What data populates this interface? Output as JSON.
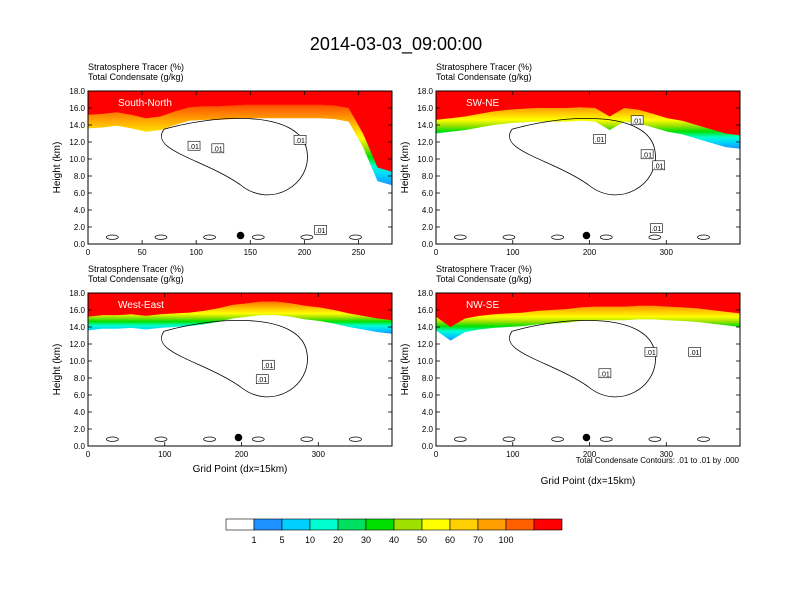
{
  "figure": {
    "title": "2014-03-03_09:00:00",
    "panel_title_line1": "Stratosphere Tracer   (%)",
    "panel_title_line2": "Total Condensate   (g/kg)",
    "ylabel": "Height (km)",
    "xlabel": "Grid Point (dx=15km)",
    "contour_note": "Total Condensate Contours: .01 to .01 by .000"
  },
  "colorbar": {
    "colors": [
      "#ffffff",
      "#1e90ff",
      "#00d0ff",
      "#00ffd0",
      "#00e060",
      "#00e000",
      "#a0e000",
      "#ffff00",
      "#ffd000",
      "#ffa000",
      "#ff6000",
      "#ff0000"
    ],
    "labels": [
      "1",
      "5",
      "10",
      "20",
      "30",
      "40",
      "50",
      "60",
      "70",
      "100"
    ]
  },
  "chart_data": [
    {
      "type": "heatmap",
      "panel_label": "South-North",
      "xlabel": "",
      "ylabel": "Height (km)",
      "x_ticks": [
        "0",
        "50",
        "100",
        "150",
        "200",
        "250"
      ],
      "x_tick_values": [
        0,
        50,
        100,
        150,
        200,
        250
      ],
      "xlim": [
        0,
        281
      ],
      "y_ticks": [
        "0.0",
        "2.0",
        "4.0",
        "6.0",
        "8.0",
        "10.0",
        "12.0",
        "14.0",
        "16.0",
        "18.0"
      ],
      "ylim": [
        0,
        18
      ],
      "tracer_base_km": [
        15.2,
        15.3,
        15.5,
        15.2,
        14.8,
        15.0,
        15.6,
        16.1,
        16.2,
        16.2,
        16.3,
        16.4,
        16.4,
        16.4,
        16.4,
        16.4,
        16.4,
        16.3,
        16.0,
        13.0,
        9.0,
        8.5
      ],
      "contour_labels": [
        {
          "x": 98,
          "y": 11.5,
          "text": ".01"
        },
        {
          "x": 120,
          "y": 11.2,
          "text": ".01"
        },
        {
          "x": 196,
          "y": 12.2,
          "text": ".01"
        },
        {
          "x": 215,
          "y": 1.6,
          "text": ".01"
        }
      ],
      "marker": {
        "x": 141,
        "y": 1.0
      }
    },
    {
      "type": "heatmap",
      "panel_label": "SW-NE",
      "xlabel": "",
      "ylabel": "Height (km)",
      "x_ticks": [
        "0",
        "100",
        "200",
        "300"
      ],
      "x_tick_values": [
        0,
        100,
        200,
        300
      ],
      "xlim": [
        0,
        396
      ],
      "y_ticks": [
        "0.0",
        "2.0",
        "4.0",
        "6.0",
        "8.0",
        "10.0",
        "12.0",
        "14.0",
        "16.0",
        "18.0"
      ],
      "ylim": [
        0,
        18
      ],
      "tracer_base_km": [
        14.6,
        14.8,
        15.0,
        15.3,
        15.6,
        15.8,
        15.9,
        16.0,
        16.0,
        16.0,
        16.1,
        16.0,
        15.0,
        16.0,
        15.8,
        15.3,
        14.8,
        14.5,
        14.0,
        13.5,
        13.0,
        12.8
      ],
      "contour_labels": [
        {
          "x": 262,
          "y": 14.5,
          "text": ".01"
        },
        {
          "x": 275,
          "y": 10.5,
          "text": ".01"
        },
        {
          "x": 290,
          "y": 9.2,
          "text": ".01"
        },
        {
          "x": 287,
          "y": 1.8,
          "text": ".01"
        },
        {
          "x": 213,
          "y": 12.3,
          "text": ".01"
        }
      ],
      "marker": {
        "x": 196,
        "y": 1.0
      }
    },
    {
      "type": "heatmap",
      "panel_label": "West-East",
      "xlabel": "Grid Point (dx=15km)",
      "ylabel": "Height (km)",
      "x_ticks": [
        "0",
        "100",
        "200",
        "300"
      ],
      "x_tick_values": [
        0,
        100,
        200,
        300
      ],
      "xlim": [
        0,
        396
      ],
      "y_ticks": [
        "0.0",
        "2.0",
        "4.0",
        "6.0",
        "8.0",
        "10.0",
        "12.0",
        "14.0",
        "16.0",
        "18.0"
      ],
      "ylim": [
        0,
        18
      ],
      "tracer_base_km": [
        15.2,
        15.4,
        15.4,
        15.5,
        15.3,
        15.5,
        15.6,
        15.7,
        15.9,
        16.2,
        16.6,
        16.8,
        17.0,
        17.0,
        16.8,
        16.5,
        16.3,
        16.0,
        15.6,
        15.3,
        15.0,
        14.8
      ],
      "contour_labels": [
        {
          "x": 235,
          "y": 9.5,
          "text": ".01"
        },
        {
          "x": 227,
          "y": 7.8,
          "text": ".01"
        }
      ],
      "marker": {
        "x": 196,
        "y": 1.0
      }
    },
    {
      "type": "heatmap",
      "panel_label": "NW-SE",
      "xlabel": "Grid Point (dx=15km)",
      "ylabel": "Height (km)",
      "x_ticks": [
        "0",
        "100",
        "200",
        "300"
      ],
      "x_tick_values": [
        0,
        100,
        200,
        300
      ],
      "xlim": [
        0,
        396
      ],
      "y_ticks": [
        "0.0",
        "2.0",
        "4.0",
        "6.0",
        "8.0",
        "10.0",
        "12.0",
        "14.0",
        "16.0",
        "18.0"
      ],
      "ylim": [
        0,
        18
      ],
      "tracer_base_km": [
        15.2,
        14.0,
        15.0,
        15.3,
        15.5,
        15.6,
        15.7,
        15.9,
        16.0,
        16.1,
        16.3,
        16.4,
        16.4,
        16.4,
        16.5,
        16.5,
        16.4,
        16.3,
        16.2,
        16.0,
        15.8,
        15.6
      ],
      "contour_labels": [
        {
          "x": 337,
          "y": 11.0,
          "text": ".01"
        },
        {
          "x": 280,
          "y": 11.0,
          "text": ".01"
        },
        {
          "x": 220,
          "y": 8.5,
          "text": ".01"
        }
      ],
      "marker": {
        "x": 196,
        "y": 1.0
      }
    }
  ]
}
